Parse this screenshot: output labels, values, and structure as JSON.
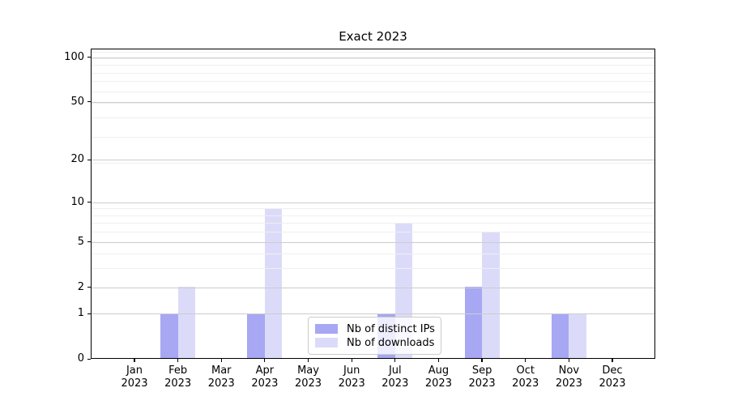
{
  "chart_data": {
    "type": "bar",
    "title": "Exact 2023",
    "months": [
      "Jan",
      "Feb",
      "Mar",
      "Apr",
      "May",
      "Jun",
      "Jul",
      "Aug",
      "Sep",
      "Oct",
      "Nov",
      "Dec"
    ],
    "year": "2023",
    "series": [
      {
        "name": "Nb of distinct IPs",
        "color": "#a7a7f3",
        "values": [
          0,
          1,
          0,
          1,
          0,
          0,
          1,
          0,
          2,
          0,
          1,
          0
        ]
      },
      {
        "name": "Nb of downloads",
        "color": "#dbdbf9",
        "values": [
          0,
          2,
          0,
          9,
          0,
          0,
          7,
          0,
          6,
          0,
          1,
          0
        ]
      }
    ],
    "y_axis": {
      "scale": "log1p",
      "ticks": [
        0,
        1,
        2,
        5,
        10,
        20,
        50,
        100
      ],
      "minor_ticks": [
        3,
        4,
        6,
        7,
        8,
        9,
        19,
        29,
        39,
        49,
        59,
        69,
        79,
        89,
        99,
        109
      ],
      "max": 114
    },
    "x_axis": {
      "tick_label_format": "month-newline-year"
    },
    "grid": {
      "major_color": "#cccccc",
      "minor_color": "#efefef",
      "drawn_above_bars": true
    },
    "legend": {
      "location": "lower center"
    },
    "colors": {
      "axes": "#000000",
      "background": "#ffffff",
      "legend_border": "#cccccc"
    }
  }
}
